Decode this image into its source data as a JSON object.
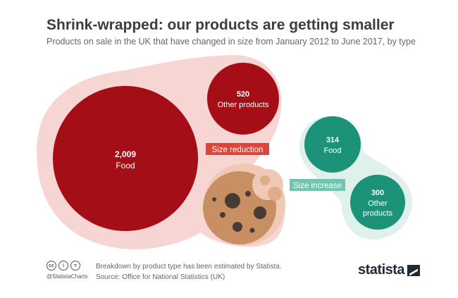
{
  "title": "Shrink-wrapped: our products are getting smaller",
  "subtitle": "Products on sale in the UK that have changed in size from January 2012 to June 2017, by type",
  "chart_data": {
    "type": "bubble",
    "groups": [
      {
        "label": "Size reduction",
        "color": "#a50e16",
        "halo_color": "#f6d5d3",
        "label_bg": "#d9473c",
        "items": [
          {
            "category": "Food",
            "value_label": "2,009",
            "value": 2009
          },
          {
            "category": "Other products",
            "value_label": "520",
            "value": 520
          }
        ]
      },
      {
        "label": "Size increase",
        "color": "#1c9378",
        "halo_color": "#dff1ea",
        "label_bg": "#6fc5ae",
        "items": [
          {
            "category": "Food",
            "value_label": "314",
            "value": 314
          },
          {
            "category": "Other products",
            "value_label": "300",
            "value": 300
          }
        ]
      }
    ]
  },
  "footer": {
    "note": "Breakdown by product type has been estimated by Statista.",
    "source": "Source: Office for National Statistics (UK)",
    "handle": "@StatistaCharts",
    "cc_icons": [
      "cc",
      "i",
      "="
    ]
  },
  "brand": "statista"
}
